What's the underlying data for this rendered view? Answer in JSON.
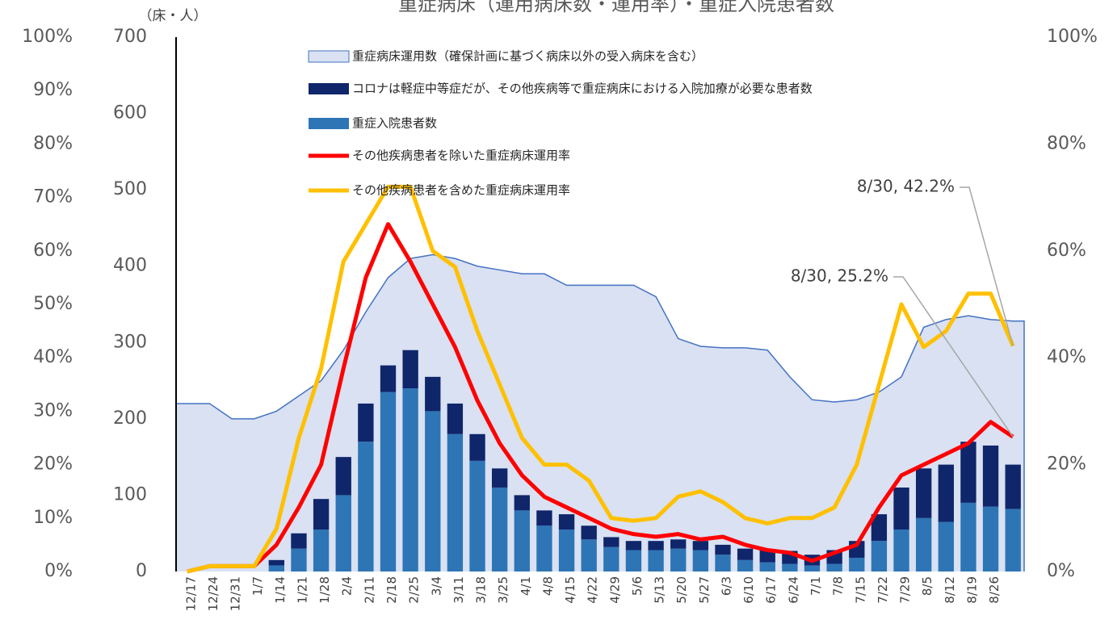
{
  "chart_data": {
    "type": "combo",
    "title": "重症病床（運用病床数・運用率）・重症入院患者数",
    "y_unit_label": "（床・人）",
    "categories": [
      "12/17",
      "12/24",
      "12/31",
      "1/7",
      "1/14",
      "1/21",
      "1/28",
      "2/4",
      "2/11",
      "2/18",
      "2/25",
      "3/4",
      "3/11",
      "3/18",
      "3/25",
      "4/1",
      "4/8",
      "4/15",
      "4/22",
      "4/29",
      "5/6",
      "5/13",
      "5/20",
      "5/27",
      "6/3",
      "6/10",
      "6/17",
      "6/24",
      "7/1",
      "7/8",
      "7/15",
      "7/22",
      "7/29",
      "8/5",
      "8/12",
      "8/19",
      "8/26",
      null
    ],
    "ylim": [
      0,
      700
    ],
    "yticks": [
      0,
      100,
      200,
      300,
      400,
      500,
      600,
      700
    ],
    "y2lim": [
      0,
      100
    ],
    "y2ticks": [
      {
        "value": 0,
        "label": "0%"
      },
      {
        "value": 20,
        "label": "20%"
      },
      {
        "value": 40,
        "label": "40%"
      },
      {
        "value": 60,
        "label": "60%"
      },
      {
        "value": 80,
        "label": "80%"
      },
      {
        "value": 100,
        "label": "100%"
      }
    ],
    "y2ticks_outer": [
      {
        "value": 0,
        "label": "0%"
      },
      {
        "value": 10,
        "label": "10%"
      },
      {
        "value": 20,
        "label": "20%"
      },
      {
        "value": 30,
        "label": "30%"
      },
      {
        "value": 40,
        "label": "40%"
      },
      {
        "value": 50,
        "label": "50%"
      },
      {
        "value": 60,
        "label": "60%"
      },
      {
        "value": 70,
        "label": "70%"
      },
      {
        "value": 80,
        "label": "80%"
      },
      {
        "value": 90,
        "label": "90%"
      },
      {
        "value": 100,
        "label": "100%"
      }
    ],
    "series": [
      {
        "name": "重症病床運用数（確保計画に基づく病床以外の受入病床を含む）",
        "kind": "area",
        "color": "#d9e1f2",
        "edge_color": "#4472c4",
        "values": [
          220,
          220,
          200,
          200,
          210,
          230,
          250,
          290,
          340,
          385,
          410,
          415,
          410,
          400,
          395,
          390,
          390,
          375,
          375,
          375,
          375,
          360,
          305,
          295,
          293,
          293,
          290,
          255,
          225,
          222,
          225,
          235,
          255,
          320,
          330,
          335,
          330,
          328
        ]
      },
      {
        "name": "重症入院患者数",
        "kind": "bar",
        "color": "#2e75b6",
        "values": [
          0,
          0,
          0,
          0,
          8,
          30,
          55,
          100,
          170,
          235,
          240,
          210,
          180,
          145,
          110,
          80,
          60,
          55,
          42,
          32,
          28,
          28,
          30,
          28,
          22,
          15,
          12,
          10,
          8,
          10,
          18,
          40,
          55,
          70,
          65,
          90,
          85,
          82
        ]
      },
      {
        "name": "コロナは軽症中等症だが、その他疾病等で重症病床における入院加療が必要な患者数",
        "kind": "bar",
        "color": "#10266b",
        "values": [
          0,
          0,
          0,
          0,
          7,
          20,
          40,
          50,
          50,
          35,
          50,
          45,
          40,
          35,
          25,
          20,
          20,
          20,
          18,
          13,
          12,
          12,
          12,
          12,
          13,
          15,
          16,
          17,
          14,
          18,
          22,
          35,
          55,
          65,
          75,
          80,
          80,
          58
        ]
      },
      {
        "name": "その他疾病患者を除いた重症病床運用率",
        "kind": "line",
        "axis": "y2",
        "color": "#ff0000",
        "values": [
          0,
          1,
          1,
          1,
          5,
          12,
          20,
          38,
          55,
          65,
          58,
          50,
          42,
          32,
          24,
          18,
          14,
          12,
          10,
          8,
          7,
          6.5,
          7,
          6,
          6.5,
          5,
          4,
          3.5,
          2,
          3.5,
          5,
          12,
          18,
          20,
          22,
          24,
          28,
          25.2
        ]
      },
      {
        "name": "その他疾病患者を含めた重症病床運用率",
        "kind": "line",
        "axis": "y2",
        "color": "#ffc000",
        "values": [
          0,
          1,
          1,
          1,
          8,
          25,
          38,
          58,
          65,
          72,
          72,
          60,
          57,
          45,
          35,
          25,
          20,
          20,
          17,
          10,
          9.5,
          10,
          14,
          15,
          13,
          10,
          9,
          10,
          10,
          12,
          20,
          35,
          50,
          42,
          45,
          52,
          52,
          42.2
        ]
      }
    ],
    "legend_order": [
      0,
      2,
      1,
      3,
      4
    ],
    "annotations": [
      {
        "text": "8/30, 42.2%",
        "series": 4,
        "index": 37
      },
      {
        "text": "8/30, 25.2%",
        "series": 3,
        "index": 37
      }
    ]
  }
}
